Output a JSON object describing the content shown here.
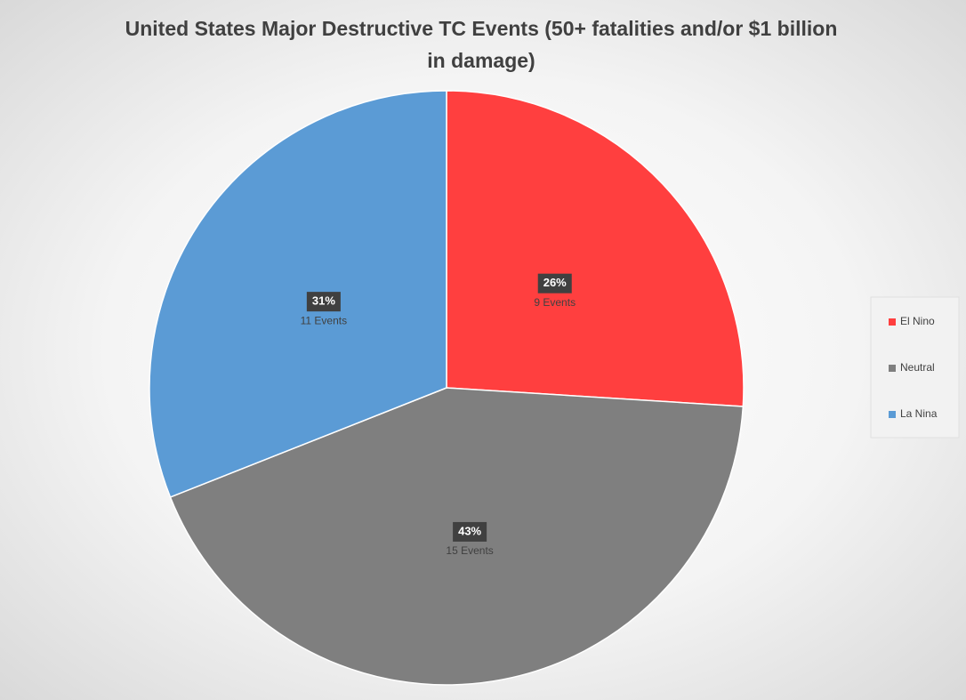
{
  "chart_data": {
    "type": "pie",
    "title": "United States Major Destructive TC Events (50+ fatalities and/or $1 billion in damage)",
    "categories": [
      "El Nino",
      "Neutral",
      "La Nina"
    ],
    "values": [
      26,
      43,
      31
    ],
    "value_labels": [
      "26%",
      "43%",
      "31%"
    ],
    "event_labels": [
      "9 Events",
      "15 Events",
      "11 Events"
    ],
    "colors": [
      "#ff3f3f",
      "#7f7f7f",
      "#5b9bd5"
    ],
    "legend": "right"
  }
}
